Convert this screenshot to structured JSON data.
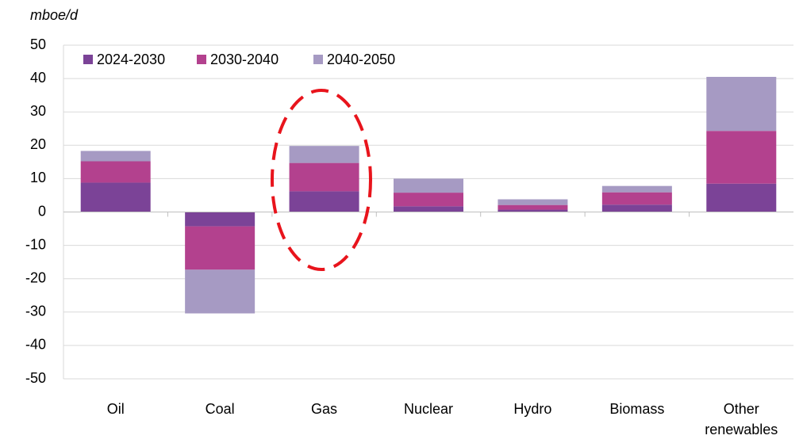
{
  "chart_data": {
    "type": "stacked_bar",
    "y_axis_label": "mboe/d",
    "categories": [
      "Oil",
      "Coal",
      "Gas",
      "Nuclear",
      "Hydro",
      "Biomass",
      "Other renewables"
    ],
    "series": [
      {
        "name": "2024-2030",
        "color": "#7b4397",
        "values": [
          8.8,
          -4.3,
          6.2,
          1.7,
          0.7,
          2.2,
          8.5
        ]
      },
      {
        "name": "2030-2040",
        "color": "#b3418e",
        "values": [
          6.4,
          -13,
          8.5,
          4.1,
          1.4,
          3.7,
          15.8
        ]
      },
      {
        "name": "2040-2050",
        "color": "#a69ac3",
        "values": [
          3.1,
          -13.1,
          5.1,
          4.2,
          1.7,
          1.9,
          16.2
        ]
      }
    ],
    "ylim": [
      -50,
      50
    ],
    "yticks": [
      -50,
      -40,
      -30,
      -20,
      -10,
      0,
      10,
      20,
      30,
      40,
      50
    ],
    "grid": true,
    "legend": "top-left"
  }
}
